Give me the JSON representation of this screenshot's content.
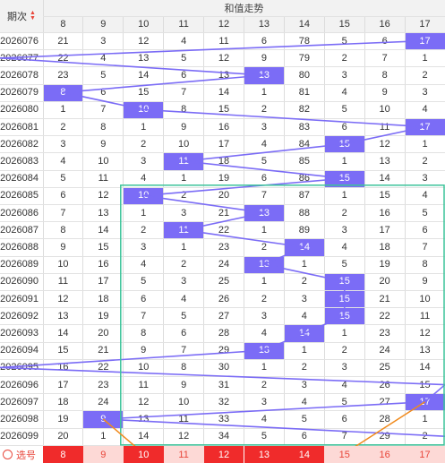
{
  "header": {
    "period_label": "期次",
    "group_title": "和值走势",
    "columns": [
      "8",
      "9",
      "10",
      "11",
      "12",
      "13",
      "14",
      "15",
      "16",
      "17"
    ]
  },
  "rows": [
    {
      "period": "2026076",
      "values": [
        "21",
        "3",
        "12",
        "4",
        "11",
        "6",
        "78",
        "5",
        "6",
        "17"
      ],
      "hit": 9
    },
    {
      "period": "2026077",
      "values": [
        "22",
        "4",
        "13",
        "5",
        "12",
        "9",
        "79",
        "2",
        "7",
        "1"
      ],
      "hit": null
    },
    {
      "period": "2026078",
      "values": [
        "23",
        "5",
        "14",
        "6",
        "13",
        "13",
        "80",
        "3",
        "8",
        "2"
      ],
      "hit": 5
    },
    {
      "period": "2026079",
      "values": [
        "8",
        "6",
        "15",
        "7",
        "14",
        "1",
        "81",
        "4",
        "9",
        "3"
      ],
      "hit": 0
    },
    {
      "period": "2026080",
      "values": [
        "1",
        "7",
        "10",
        "8",
        "15",
        "2",
        "82",
        "5",
        "10",
        "4"
      ],
      "hit": 2
    },
    {
      "period": "2026081",
      "values": [
        "2",
        "8",
        "1",
        "9",
        "16",
        "3",
        "83",
        "6",
        "11",
        "17"
      ],
      "hit": 9
    },
    {
      "period": "2026082",
      "values": [
        "3",
        "9",
        "2",
        "10",
        "17",
        "4",
        "84",
        "15",
        "12",
        "1"
      ],
      "hit": 7
    },
    {
      "period": "2026083",
      "values": [
        "4",
        "10",
        "3",
        "11",
        "18",
        "5",
        "85",
        "1",
        "13",
        "2"
      ],
      "hit": 3
    },
    {
      "period": "2026084",
      "values": [
        "5",
        "11",
        "4",
        "1",
        "19",
        "6",
        "86",
        "15",
        "14",
        "3"
      ],
      "hit": 7
    },
    {
      "period": "2026085",
      "values": [
        "6",
        "12",
        "10",
        "2",
        "20",
        "7",
        "87",
        "1",
        "15",
        "4"
      ],
      "hit": 2
    },
    {
      "period": "2026086",
      "values": [
        "7",
        "13",
        "1",
        "3",
        "21",
        "13",
        "88",
        "2",
        "16",
        "5"
      ],
      "hit": 5
    },
    {
      "period": "2026087",
      "values": [
        "8",
        "14",
        "2",
        "11",
        "22",
        "1",
        "89",
        "3",
        "17",
        "6"
      ],
      "hit": 3
    },
    {
      "period": "2026088",
      "values": [
        "9",
        "15",
        "3",
        "1",
        "23",
        "2",
        "14",
        "4",
        "18",
        "7"
      ],
      "hit": 6
    },
    {
      "period": "2026089",
      "values": [
        "10",
        "16",
        "4",
        "2",
        "24",
        "13",
        "1",
        "5",
        "19",
        "8"
      ],
      "hit": 5
    },
    {
      "period": "2026090",
      "values": [
        "11",
        "17",
        "5",
        "3",
        "25",
        "1",
        "2",
        "15",
        "20",
        "9"
      ],
      "hit": 7
    },
    {
      "period": "2026091",
      "values": [
        "12",
        "18",
        "6",
        "4",
        "26",
        "2",
        "3",
        "15",
        "21",
        "10"
      ],
      "hit": 7
    },
    {
      "period": "2026092",
      "values": [
        "13",
        "19",
        "7",
        "5",
        "27",
        "3",
        "4",
        "15",
        "22",
        "11"
      ],
      "hit": 7
    },
    {
      "period": "2026093",
      "values": [
        "14",
        "20",
        "8",
        "6",
        "28",
        "4",
        "14",
        "1",
        "23",
        "12"
      ],
      "hit": 6
    },
    {
      "period": "2026094",
      "values": [
        "15",
        "21",
        "9",
        "7",
        "29",
        "13",
        "1",
        "2",
        "24",
        "13"
      ],
      "hit": 5
    },
    {
      "period": "2026095",
      "values": [
        "16",
        "22",
        "10",
        "8",
        "30",
        "1",
        "2",
        "3",
        "25",
        "14"
      ],
      "hit": null
    },
    {
      "period": "2026096",
      "values": [
        "17",
        "23",
        "11",
        "9",
        "31",
        "2",
        "3",
        "4",
        "26",
        "15"
      ],
      "hit": null
    },
    {
      "period": "2026097",
      "values": [
        "18",
        "24",
        "12",
        "10",
        "32",
        "3",
        "4",
        "5",
        "27",
        "17"
      ],
      "hit": 9
    },
    {
      "period": "2026098",
      "values": [
        "19",
        "9",
        "13",
        "11",
        "33",
        "4",
        "5",
        "6",
        "28",
        "1"
      ],
      "hit": 1
    },
    {
      "period": "2026099",
      "values": [
        "20",
        "1",
        "14",
        "12",
        "34",
        "5",
        "6",
        "7",
        "29",
        "2"
      ],
      "hit": null
    }
  ],
  "selection": {
    "label": "选号",
    "values": [
      "8",
      "9",
      "10",
      "11",
      "12",
      "13",
      "14",
      "15",
      "16",
      "17"
    ]
  },
  "colors": {
    "hit": "#7b6cf6",
    "trend_line": "#7b6cf6",
    "box": "#3cc49a",
    "pick_line": "#f08a1c",
    "sel_dark": "#f02b2b",
    "sel_light": "#fdd9d6",
    "sel_text_light": "#e8463a"
  }
}
